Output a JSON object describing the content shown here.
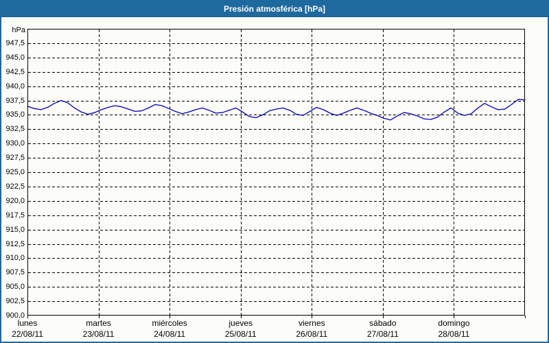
{
  "window": {
    "title": "Presión atmosférica [hPa]"
  },
  "colors": {
    "titlebar_bg": "#1e699d",
    "titlebar_text": "#ffffff",
    "panel_border": "#1e699d",
    "panel_bg": "#fcfdf8",
    "grid": "#000000",
    "axis": "#000000",
    "line": "#0000b3",
    "label_text": "#000000"
  },
  "chart_data": {
    "type": "line",
    "title": "Presión atmosférica [hPa]",
    "ylabel_unit": "hPa",
    "grid": {
      "horizontal": "dashed",
      "vertical": "dashed-at-day-boundaries"
    },
    "y_axis": {
      "min": 900,
      "max": 950,
      "tick_step": 2.5,
      "tick_values": [
        900.0,
        902.5,
        905.0,
        907.5,
        910.0,
        912.5,
        915.0,
        917.5,
        920.0,
        922.5,
        925.0,
        927.5,
        930.0,
        932.5,
        935.0,
        937.5,
        940.0,
        942.5,
        945.0,
        947.5
      ],
      "tick_labels": [
        "900,0",
        "902,5",
        "905,0",
        "907,5",
        "910,0",
        "912,5",
        "915,0",
        "917,5",
        "920,0",
        "922,5",
        "925,0",
        "927,5",
        "930,0",
        "932,5",
        "935,0",
        "937,5",
        "940,0",
        "942,5",
        "945,0",
        "947,5"
      ]
    },
    "x_axis": {
      "span_days": 7,
      "days": [
        {
          "name": "lunes",
          "date": "22/08/11"
        },
        {
          "name": "martes",
          "date": "23/08/11"
        },
        {
          "name": "miércoles",
          "date": "24/08/11"
        },
        {
          "name": "jueves",
          "date": "25/08/11"
        },
        {
          "name": "viernes",
          "date": "26/08/11"
        },
        {
          "name": "sábado",
          "date": "27/08/11"
        },
        {
          "name": "domingo",
          "date": "28/08/11"
        }
      ]
    },
    "series": [
      {
        "name": "Presión atmosférica",
        "color": "#0000b3",
        "x_start_day": 0,
        "x_end_day": 7,
        "values_hpa": [
          936.5,
          936.1,
          935.9,
          936.3,
          937.0,
          937.5,
          937.1,
          936.2,
          935.5,
          935.1,
          935.4,
          935.9,
          936.3,
          936.6,
          936.4,
          936.0,
          935.6,
          935.7,
          936.2,
          936.8,
          936.6,
          936.1,
          935.6,
          935.2,
          935.5,
          935.9,
          936.2,
          935.8,
          935.3,
          935.4,
          935.8,
          936.2,
          935.5,
          934.7,
          934.5,
          935.0,
          935.7,
          936.0,
          936.2,
          935.8,
          935.1,
          934.9,
          935.6,
          936.3,
          935.9,
          935.3,
          934.9,
          935.3,
          935.8,
          936.2,
          935.8,
          935.3,
          934.9,
          934.4,
          934.1,
          934.8,
          935.4,
          935.2,
          934.8,
          934.3,
          934.2,
          934.6,
          935.5,
          936.2,
          935.3,
          934.9,
          935.2,
          936.2,
          937.0,
          936.4,
          935.9,
          936.0,
          936.8,
          937.7,
          937.6
        ]
      }
    ]
  }
}
